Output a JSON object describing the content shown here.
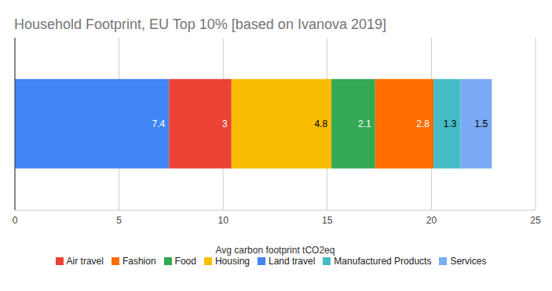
{
  "chart_data": {
    "type": "bar",
    "title": "Household Footprint, EU Top 10% [based on Ivanova 2019]",
    "x_label": "Avg carbon footprint tCO2eq",
    "categories": [
      null
    ],
    "orientation": "horizontal",
    "stacked": true,
    "data_labels": true,
    "grid": true,
    "legend": "bottom",
    "tick_labels": "x",
    "xlim": [
      0,
      25
    ],
    "xticks": [
      0,
      5,
      10,
      15,
      20,
      25
    ],
    "series": [
      {
        "name": "Land travel",
        "color": "#4285f4",
        "values": [
          7.4
        ]
      },
      {
        "name": "Air travel",
        "color": "#ea4335",
        "values": [
          3
        ]
      },
      {
        "name": "Housing",
        "color": "#fbbc04",
        "values": [
          4.8
        ]
      },
      {
        "name": "Food",
        "color": "#34a853",
        "values": [
          2.1
        ]
      },
      {
        "name": "Fashion",
        "color": "#ff6d01",
        "values": [
          2.8
        ]
      },
      {
        "name": "Manufactured Products",
        "color": "#46bdc6",
        "values": [
          1.3
        ]
      },
      {
        "name": "Services",
        "color": "#7baaf7",
        "values": [
          1.5
        ]
      }
    ]
  }
}
